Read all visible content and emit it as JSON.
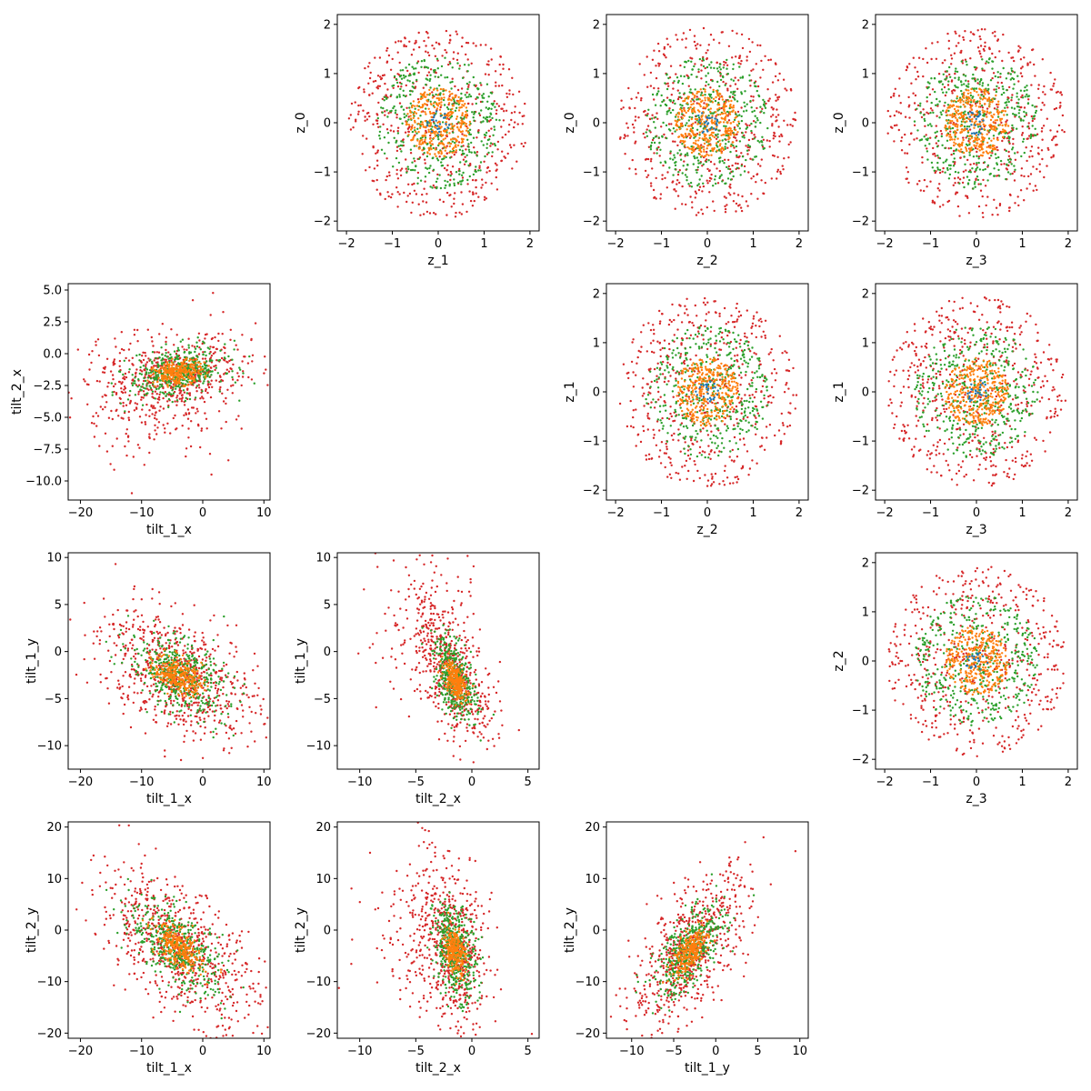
{
  "chart_data": [
    {
      "type": "scatter",
      "panel": "z_0-vs-z_1",
      "xlabel": "z_1",
      "ylabel": "z_0",
      "xlim": [
        -2.2,
        2.2
      ],
      "ylim": [
        -2.2,
        2.2
      ],
      "xticks": [
        -2,
        -1,
        0,
        1,
        2
      ],
      "yticks": [
        -2,
        -1,
        0,
        1,
        2
      ],
      "xtick_labels": [
        "−2",
        "−1",
        "0",
        "1",
        "2"
      ],
      "ytick_labels": [
        "−2",
        "−1",
        "0",
        "1",
        "2"
      ]
    },
    {
      "type": "scatter",
      "panel": "z_0-vs-z_2",
      "xlabel": "z_2",
      "ylabel": "z_0",
      "xlim": [
        -2.2,
        2.2
      ],
      "ylim": [
        -2.2,
        2.2
      ],
      "xticks": [
        -2,
        -1,
        0,
        1,
        2
      ],
      "yticks": [
        -2,
        -1,
        0,
        1,
        2
      ],
      "xtick_labels": [
        "−2",
        "−1",
        "0",
        "1",
        "2"
      ],
      "ytick_labels": [
        "−2",
        "−1",
        "0",
        "1",
        "2"
      ]
    },
    {
      "type": "scatter",
      "panel": "z_0-vs-z_3",
      "xlabel": "z_3",
      "ylabel": "z_0",
      "xlim": [
        -2.2,
        2.2
      ],
      "ylim": [
        -2.2,
        2.2
      ],
      "xticks": [
        -2,
        -1,
        0,
        1,
        2
      ],
      "yticks": [
        -2,
        -1,
        0,
        1,
        2
      ],
      "xtick_labels": [
        "−2",
        "−1",
        "0",
        "1",
        "2"
      ],
      "ytick_labels": [
        "−2",
        "−1",
        "0",
        "1",
        "2"
      ]
    },
    {
      "type": "scatter",
      "panel": "tilt_2_x-vs-tilt_1_x",
      "xlabel": "tilt_1_x",
      "ylabel": "tilt_2_x",
      "xlim": [
        -22,
        11
      ],
      "ylim": [
        -11.5,
        5.5
      ],
      "xticks": [
        -20,
        -10,
        0,
        10
      ],
      "yticks": [
        5,
        2.5,
        0,
        -2.5,
        -5,
        -7.5,
        -10
      ],
      "xtick_labels": [
        "−20",
        "−10",
        "0",
        "10"
      ],
      "ytick_labels": [
        "5.0",
        "2.5",
        "0.0",
        "−2.5",
        "−5.0",
        "−7.5",
        "−10.0"
      ]
    },
    {
      "type": "scatter",
      "panel": "z_1-vs-z_2",
      "xlabel": "z_2",
      "ylabel": "z_1",
      "xlim": [
        -2.2,
        2.2
      ],
      "ylim": [
        -2.2,
        2.2
      ],
      "xticks": [
        -2,
        -1,
        0,
        1,
        2
      ],
      "yticks": [
        -2,
        -1,
        0,
        1,
        2
      ],
      "xtick_labels": [
        "−2",
        "−1",
        "0",
        "1",
        "2"
      ],
      "ytick_labels": [
        "−2",
        "−1",
        "0",
        "1",
        "2"
      ]
    },
    {
      "type": "scatter",
      "panel": "z_1-vs-z_3",
      "xlabel": "z_3",
      "ylabel": "z_1",
      "xlim": [
        -2.2,
        2.2
      ],
      "ylim": [
        -2.2,
        2.2
      ],
      "xticks": [
        -2,
        -1,
        0,
        1,
        2
      ],
      "yticks": [
        -2,
        -1,
        0,
        1,
        2
      ],
      "xtick_labels": [
        "−2",
        "−1",
        "0",
        "1",
        "2"
      ],
      "ytick_labels": [
        "−2",
        "−1",
        "0",
        "1",
        "2"
      ]
    },
    {
      "type": "scatter",
      "panel": "tilt_1_y-vs-tilt_1_x",
      "xlabel": "tilt_1_x",
      "ylabel": "tilt_1_y",
      "xlim": [
        -22,
        11
      ],
      "ylim": [
        -12.5,
        10.5
      ],
      "xticks": [
        -20,
        -10,
        0,
        10
      ],
      "yticks": [
        10,
        5,
        0,
        -5,
        -10
      ],
      "xtick_labels": [
        "−20",
        "−10",
        "0",
        "10"
      ],
      "ytick_labels": [
        "10",
        "5",
        "0",
        "−5",
        "−10"
      ]
    },
    {
      "type": "scatter",
      "panel": "tilt_1_y-vs-tilt_2_x",
      "xlabel": "tilt_2_x",
      "ylabel": "tilt_1_y",
      "xlim": [
        -12,
        6
      ],
      "ylim": [
        -12.5,
        10.5
      ],
      "xticks": [
        -10,
        -5,
        0,
        5
      ],
      "yticks": [
        10,
        5,
        0,
        -5,
        -10
      ],
      "xtick_labels": [
        "−10",
        "−5",
        "0",
        "5"
      ],
      "ytick_labels": [
        "10",
        "5",
        "0",
        "−5",
        "−10"
      ]
    },
    {
      "type": "scatter",
      "panel": "z_2-vs-z_3",
      "xlabel": "z_3",
      "ylabel": "z_2",
      "xlim": [
        -2.2,
        2.2
      ],
      "ylim": [
        -2.2,
        2.2
      ],
      "xticks": [
        -2,
        -1,
        0,
        1,
        2
      ],
      "yticks": [
        -2,
        -1,
        0,
        1,
        2
      ],
      "xtick_labels": [
        "−2",
        "−1",
        "0",
        "1",
        "2"
      ],
      "ytick_labels": [
        "−2",
        "−1",
        "0",
        "1",
        "2"
      ]
    },
    {
      "type": "scatter",
      "panel": "tilt_2_y-vs-tilt_1_x",
      "xlabel": "tilt_1_x",
      "ylabel": "tilt_2_y",
      "xlim": [
        -22,
        11
      ],
      "ylim": [
        -21,
        21
      ],
      "xticks": [
        -20,
        -10,
        0,
        10
      ],
      "yticks": [
        20,
        10,
        0,
        -10,
        -20
      ],
      "xtick_labels": [
        "−20",
        "−10",
        "0",
        "10"
      ],
      "ytick_labels": [
        "20",
        "10",
        "0",
        "−10",
        "−20"
      ]
    },
    {
      "type": "scatter",
      "panel": "tilt_2_y-vs-tilt_2_x",
      "xlabel": "tilt_2_x",
      "ylabel": "tilt_2_y",
      "xlim": [
        -12,
        6
      ],
      "ylim": [
        -21,
        21
      ],
      "xticks": [
        -10,
        -5,
        0,
        5
      ],
      "yticks": [
        20,
        10,
        0,
        -10,
        -20
      ],
      "xtick_labels": [
        "−10",
        "−5",
        "0",
        "5"
      ],
      "ytick_labels": [
        "20",
        "10",
        "0",
        "−10",
        "−20"
      ]
    },
    {
      "type": "scatter",
      "panel": "tilt_2_y-vs-tilt_1_y",
      "xlabel": "tilt_1_y",
      "ylabel": "tilt_2_y",
      "xlim": [
        -13,
        11
      ],
      "ylim": [
        -21,
        21
      ],
      "xticks": [
        -10,
        -5,
        0,
        5,
        10
      ],
      "yticks": [
        20,
        10,
        0,
        -10,
        -20
      ],
      "xtick_labels": [
        "−10",
        "−5",
        "0",
        "5",
        "10"
      ],
      "ytick_labels": [
        "20",
        "10",
        "0",
        "−10",
        "−20"
      ]
    }
  ],
  "series_colors": {
    "outer": "#d62728",
    "middle": "#2ca02c",
    "inner": "#ff7f0e",
    "core": "#1f77b4"
  }
}
